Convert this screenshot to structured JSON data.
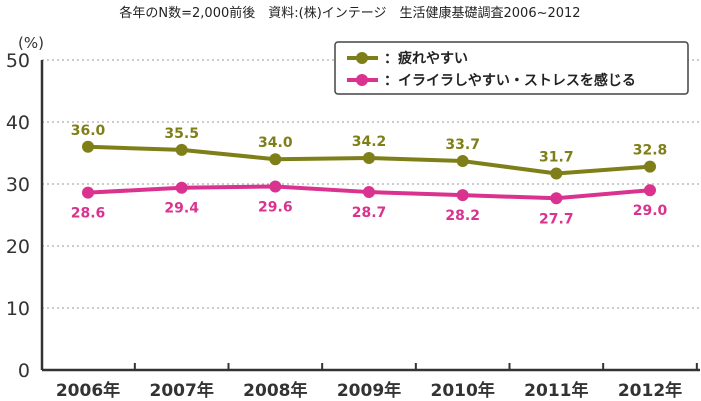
{
  "note": "各年のN数=2,000前後　資料:(株)インテージ　生活健康基礎調査2006~2012",
  "chart_data": {
    "type": "line",
    "ylabel": "(%)",
    "ylim": [
      0,
      50
    ],
    "yticks": [
      "0",
      "10",
      "20",
      "30",
      "40",
      "50"
    ],
    "categories": [
      "2006年",
      "2007年",
      "2008年",
      "2009年",
      "2010年",
      "2011年",
      "2012年"
    ],
    "grid": true,
    "legend_position": "top-right",
    "series": [
      {
        "name": "：疲れやすい",
        "color": "#7f7f1a",
        "values": [
          36.0,
          35.5,
          34.0,
          34.2,
          33.7,
          31.7,
          32.8
        ],
        "labels": [
          "36.0",
          "35.5",
          "34.0",
          "34.2",
          "33.7",
          "31.7",
          "32.8"
        ],
        "label_position": "above"
      },
      {
        "name": "：イライラしやすい・ストレスを感じる",
        "color": "#d9338f",
        "values": [
          28.6,
          29.4,
          29.6,
          28.7,
          28.2,
          27.7,
          29.0
        ],
        "labels": [
          "28.6",
          "29.4",
          "29.6",
          "28.7",
          "28.2",
          "27.7",
          "29.0"
        ],
        "label_position": "below"
      }
    ]
  }
}
